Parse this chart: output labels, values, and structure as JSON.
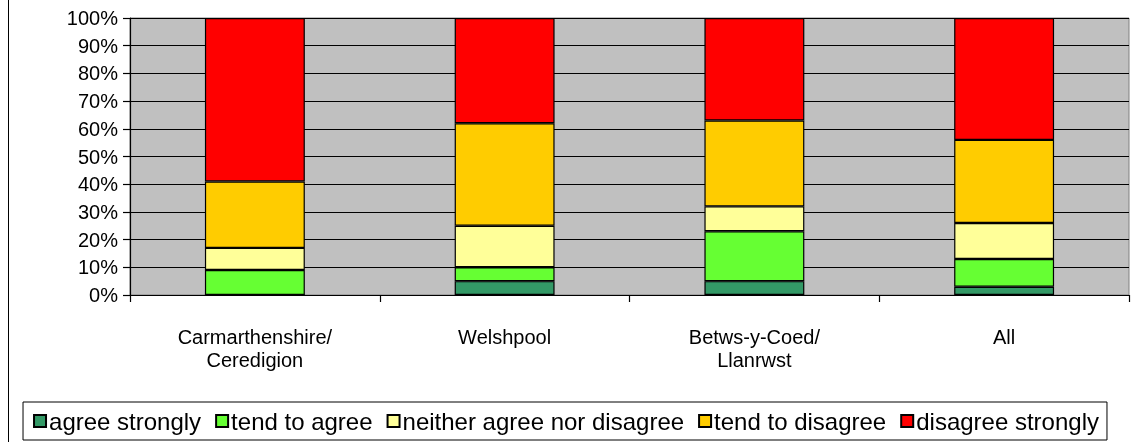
{
  "chart_data": {
    "type": "bar",
    "stacked": true,
    "categories": [
      "Carmarthenshire/Ceredigion",
      "Welshpool",
      "Betws-y-Coed/Llanrwst",
      "All"
    ],
    "series": [
      {
        "name": "agree strongly",
        "color": "#339966",
        "values": [
          0,
          5,
          5,
          3
        ]
      },
      {
        "name": "tend to agree",
        "color": "#66ff33",
        "values": [
          9,
          5,
          18,
          10
        ]
      },
      {
        "name": "neither agree nor disagree",
        "color": "#ffff99",
        "values": [
          8,
          15,
          9,
          13
        ]
      },
      {
        "name": "tend to disagree",
        "color": "#ffcc00",
        "values": [
          24,
          37,
          31,
          30
        ]
      },
      {
        "name": "disagree strongly",
        "color": "#ff0000",
        "values": [
          59,
          38,
          37,
          44
        ]
      }
    ],
    "ylim": [
      0,
      100
    ],
    "yticks": [
      {
        "value": 0,
        "label": "0%"
      },
      {
        "value": 10,
        "label": "10%"
      },
      {
        "value": 20,
        "label": "20%"
      },
      {
        "value": 30,
        "label": "30%"
      },
      {
        "value": 40,
        "label": "40%"
      },
      {
        "value": 50,
        "label": "50%"
      },
      {
        "value": 60,
        "label": "60%"
      },
      {
        "value": 70,
        "label": "70%"
      },
      {
        "value": 80,
        "label": "80%"
      },
      {
        "value": 90,
        "label": "90%"
      },
      {
        "value": 100,
        "label": "100%"
      }
    ],
    "grid": "y",
    "legend": "bottom"
  }
}
